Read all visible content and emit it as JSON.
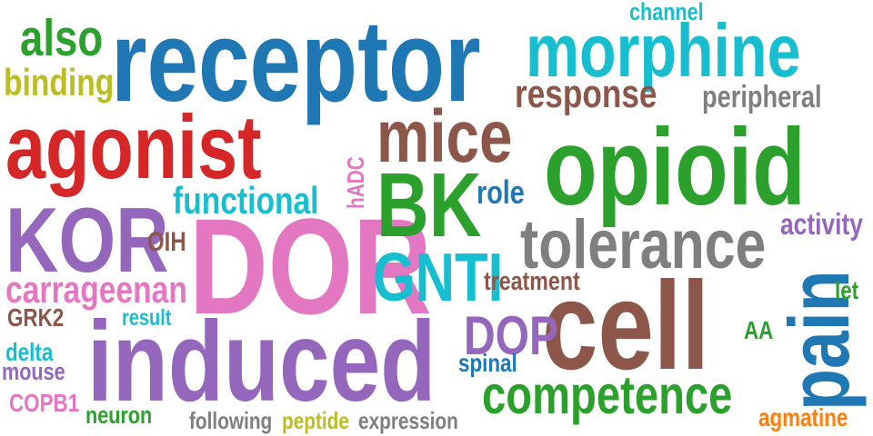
{
  "words": [
    {
      "id": "receptor",
      "text": "receptor",
      "color": "#1f77b4"
    },
    {
      "id": "morphine",
      "text": "morphine",
      "color": "#17becf"
    },
    {
      "id": "agonist",
      "text": "agonist",
      "color": "#d62728"
    },
    {
      "id": "opioid",
      "text": "opioid",
      "color": "#2ca02c"
    },
    {
      "id": "DOR",
      "text": "DOR",
      "color": "#e377c2"
    },
    {
      "id": "induced",
      "text": "induced",
      "color": "#9467bd"
    },
    {
      "id": "cell",
      "text": "cell",
      "color": "#8c564b"
    },
    {
      "id": "KOR",
      "text": "KOR",
      "color": "#9467bd"
    },
    {
      "id": "BK",
      "text": "BK",
      "color": "#2ca02c"
    },
    {
      "id": "pain",
      "text": "pain",
      "color": "#1f77b4"
    },
    {
      "id": "tolerance",
      "text": "tolerance",
      "color": "#7f7f7f"
    },
    {
      "id": "competence",
      "text": "competence",
      "color": "#2ca02c"
    },
    {
      "id": "mice",
      "text": "mice",
      "color": "#8c564b"
    },
    {
      "id": "GNTI",
      "text": "GNTI",
      "color": "#17becf"
    },
    {
      "id": "also",
      "text": "also",
      "color": "#2ca02c"
    },
    {
      "id": "response",
      "text": "response",
      "color": "#8c564b"
    },
    {
      "id": "functional",
      "text": "functional",
      "color": "#17becf"
    },
    {
      "id": "carrageenan",
      "text": "carrageenan",
      "color": "#e377c2"
    },
    {
      "id": "DOP",
      "text": "DOP",
      "color": "#9467bd"
    },
    {
      "id": "binding",
      "text": "binding",
      "color": "#bcbd22"
    },
    {
      "id": "peripheral",
      "text": "peripheral",
      "color": "#7f7f7f"
    },
    {
      "id": "activity",
      "text": "activity",
      "color": "#9467bd"
    },
    {
      "id": "role",
      "text": "role",
      "color": "#1f77b4"
    },
    {
      "id": "treatment",
      "text": "treatment",
      "color": "#8c564b"
    },
    {
      "id": "agmatine",
      "text": "agmatine",
      "color": "#ff7f0e"
    },
    {
      "id": "channel",
      "text": "channel",
      "color": "#17becf"
    },
    {
      "id": "hADC",
      "text": "hADC",
      "color": "#e377c2"
    },
    {
      "id": "OIH",
      "text": "OIH",
      "color": "#8c564b"
    },
    {
      "id": "GRK2",
      "text": "GRK2",
      "color": "#8c564b"
    },
    {
      "id": "result",
      "text": "result",
      "color": "#17becf"
    },
    {
      "id": "delta",
      "text": "delta",
      "color": "#17becf"
    },
    {
      "id": "mouse",
      "text": "mouse",
      "color": "#9467bd"
    },
    {
      "id": "COPB1",
      "text": "COPB1",
      "color": "#e377c2"
    },
    {
      "id": "neuron",
      "text": "neuron",
      "color": "#2ca02c"
    },
    {
      "id": "following",
      "text": "following",
      "color": "#7f7f7f"
    },
    {
      "id": "peptide",
      "text": "peptide",
      "color": "#bcbd22"
    },
    {
      "id": "expression",
      "text": "expression",
      "color": "#7f7f7f"
    },
    {
      "id": "spinal",
      "text": "spinal",
      "color": "#1f77b4"
    },
    {
      "id": "let",
      "text": "let",
      "color": "#2ca02c"
    },
    {
      "id": "AA",
      "text": "AA",
      "color": "#2ca02c"
    }
  ]
}
